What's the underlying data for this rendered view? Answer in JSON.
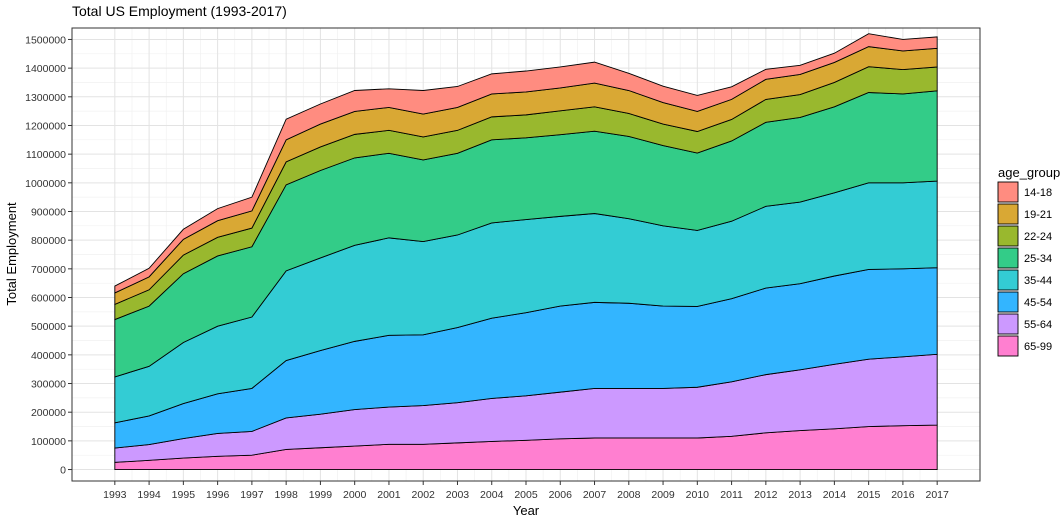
{
  "chart_data": {
    "type": "area",
    "stacked": true,
    "title": "Total US Employment (1993-2017)",
    "xlabel": "Year",
    "ylabel": "Total Employment",
    "x": [
      1993,
      1994,
      1995,
      1996,
      1997,
      1998,
      1999,
      2000,
      2001,
      2002,
      2003,
      2004,
      2005,
      2006,
      2007,
      2008,
      2009,
      2010,
      2011,
      2012,
      2013,
      2014,
      2015,
      2016,
      2017
    ],
    "ylim": [
      -40000,
      1540000
    ],
    "yticks": [
      0,
      100000,
      200000,
      300000,
      400000,
      500000,
      600000,
      700000,
      800000,
      900000,
      1000000,
      1100000,
      1200000,
      1300000,
      1400000,
      1500000
    ],
    "grid": true,
    "legend_title": "age_group",
    "legend_position": "right",
    "series": [
      {
        "name": "65-99",
        "color": "#FF7FD0",
        "values": [
          25000,
          32000,
          40000,
          46000,
          50000,
          70000,
          76000,
          82000,
          88000,
          88000,
          93000,
          98000,
          102000,
          107000,
          110000,
          110000,
          110000,
          110000,
          116000,
          128000,
          136000,
          142000,
          150000,
          153000,
          155000
        ]
      },
      {
        "name": "55-64",
        "color": "#CC99FF",
        "values": [
          50000,
          55000,
          68000,
          80000,
          83000,
          110000,
          117000,
          127000,
          130000,
          135000,
          140000,
          150000,
          155000,
          163000,
          173000,
          173000,
          173000,
          177000,
          190000,
          203000,
          212000,
          225000,
          235000,
          240000,
          247000
        ]
      },
      {
        "name": "45-54",
        "color": "#33B5FF",
        "values": [
          88000,
          100000,
          122000,
          138000,
          150000,
          200000,
          222000,
          238000,
          250000,
          247000,
          262000,
          280000,
          290000,
          300000,
          300000,
          297000,
          287000,
          282000,
          290000,
          302000,
          300000,
          308000,
          313000,
          307000,
          302000
        ]
      },
      {
        "name": "35-44",
        "color": "#33CCD4",
        "values": [
          160000,
          173000,
          213000,
          236000,
          249000,
          313000,
          323000,
          335000,
          340000,
          325000,
          323000,
          332000,
          325000,
          313000,
          310000,
          295000,
          280000,
          265000,
          270000,
          285000,
          285000,
          290000,
          302000,
          300000,
          302000
        ]
      },
      {
        "name": "25-34",
        "color": "#33CC88",
        "values": [
          200000,
          210000,
          240000,
          245000,
          245000,
          300000,
          305000,
          305000,
          295000,
          285000,
          285000,
          290000,
          285000,
          285000,
          287000,
          287000,
          280000,
          270000,
          280000,
          293000,
          295000,
          300000,
          315000,
          310000,
          315000
        ]
      },
      {
        "name": "22-24",
        "color": "#99B82E",
        "values": [
          53000,
          57000,
          65000,
          65000,
          65000,
          80000,
          82000,
          82000,
          80000,
          80000,
          80000,
          80000,
          80000,
          83000,
          85000,
          80000,
          75000,
          75000,
          75000,
          80000,
          80000,
          85000,
          90000,
          85000,
          83000
        ]
      },
      {
        "name": "19-21",
        "color": "#D9A834",
        "values": [
          40000,
          45000,
          55000,
          58000,
          60000,
          77000,
          80000,
          80000,
          80000,
          80000,
          80000,
          80000,
          80000,
          80000,
          83000,
          80000,
          75000,
          70000,
          70000,
          70000,
          70000,
          70000,
          70000,
          65000,
          65000
        ]
      },
      {
        "name": "14-18",
        "color": "#FF8C80",
        "values": [
          24000,
          30000,
          35000,
          42000,
          48000,
          72000,
          70000,
          73000,
          65000,
          82000,
          73000,
          70000,
          73000,
          73000,
          73000,
          60000,
          57000,
          56000,
          44000,
          35000,
          32000,
          32000,
          45000,
          40000,
          40000
        ]
      }
    ]
  }
}
